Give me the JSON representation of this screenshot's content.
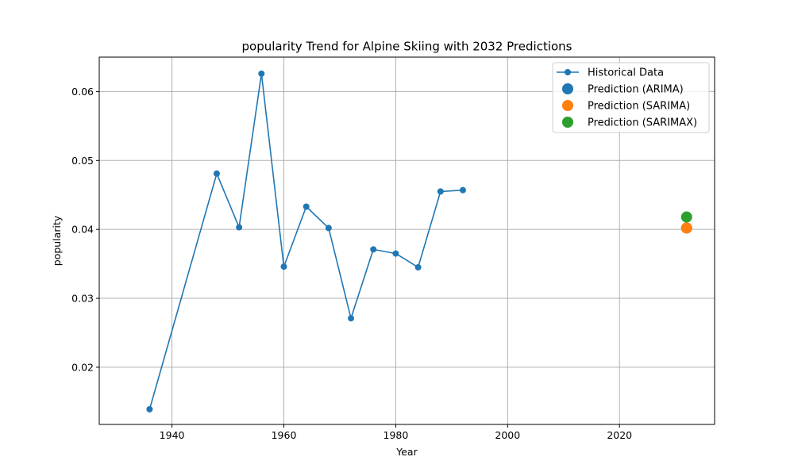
{
  "chart_data": {
    "type": "line",
    "title": "popularity Trend for Alpine Skiing with 2032 Predictions",
    "xlabel": "Year",
    "ylabel": "popularity",
    "xlim": [
      1927,
      2037
    ],
    "ylim": [
      0.0117,
      0.065
    ],
    "xticks": [
      1940,
      1960,
      1980,
      2000,
      2020
    ],
    "yticks": [
      0.02,
      0.03,
      0.04,
      0.05,
      0.06
    ],
    "xtick_labels": [
      "1940",
      "1960",
      "1980",
      "2000",
      "2020"
    ],
    "ytick_labels": [
      "0.02",
      "0.03",
      "0.04",
      "0.05",
      "0.06"
    ],
    "grid": true,
    "legend_position": "top-right",
    "series": [
      {
        "name": "Historical Data",
        "kind": "line-marker",
        "color": "#1f77b4",
        "x": [
          1936,
          1948,
          1952,
          1956,
          1960,
          1964,
          1968,
          1972,
          1976,
          1980,
          1984,
          1988,
          1992
        ],
        "y": [
          0.0139,
          0.0481,
          0.0403,
          0.0626,
          0.0346,
          0.0433,
          0.0402,
          0.0271,
          0.0371,
          0.0365,
          0.0345,
          0.0455,
          0.0457
        ]
      },
      {
        "name": "Prediction (ARIMA)",
        "kind": "point",
        "color": "#1f77b4",
        "x": [
          2032
        ],
        "y": [
          0.0402
        ]
      },
      {
        "name": "Prediction (SARIMA)",
        "kind": "point",
        "color": "#ff7f0e",
        "x": [
          2032
        ],
        "y": [
          0.0402
        ]
      },
      {
        "name": "Prediction (SARIMAX)",
        "kind": "point",
        "color": "#2ca02c",
        "x": [
          2032
        ],
        "y": [
          0.0418
        ]
      }
    ]
  }
}
